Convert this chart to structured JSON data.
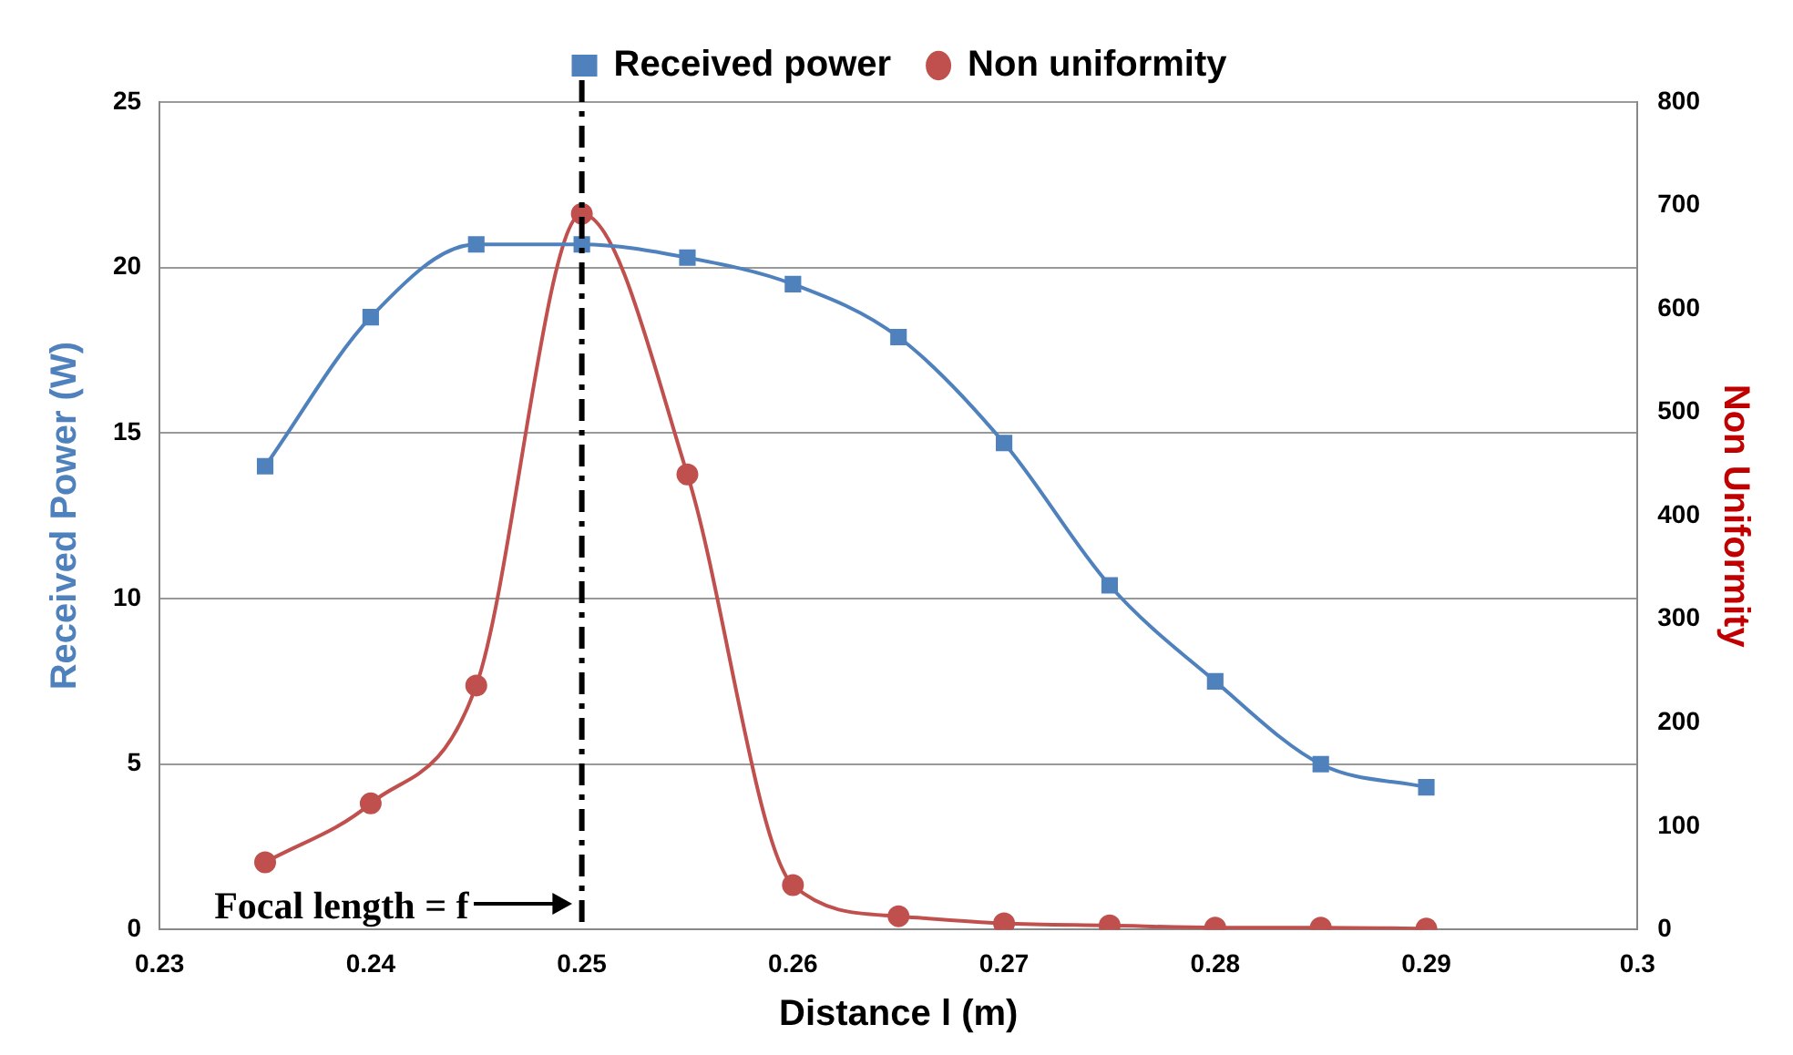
{
  "chart_data": {
    "type": "line",
    "xlabel": "Distance l (m)",
    "ylabel": "Received Power (W)",
    "y2label": "Non Uniformity",
    "x": [
      0.235,
      0.24,
      0.245,
      0.25,
      0.255,
      0.26,
      0.265,
      0.27,
      0.275,
      0.28,
      0.285,
      0.29
    ],
    "series": [
      {
        "name": "Received power",
        "color": "#4f81bd",
        "marker": "square",
        "values": [
          14.0,
          18.5,
          20.7,
          20.7,
          20.3,
          19.5,
          17.9,
          14.7,
          10.4,
          7.5,
          5.0,
          4.3
        ]
      },
      {
        "name": "Non uniformity",
        "color": "#c0504d",
        "marker": "circle",
        "axis": "y2",
        "values": [
          65,
          122,
          236,
          692,
          440,
          43,
          13,
          6,
          4,
          2,
          2,
          1
        ]
      }
    ],
    "xlim": [
      0.23,
      0.3
    ],
    "xticks": [
      0.23,
      0.24,
      0.25,
      0.26,
      0.27,
      0.28,
      0.29,
      0.3
    ],
    "ylim": [
      0,
      25
    ],
    "yticks": [
      0,
      5,
      10,
      15,
      20,
      25
    ],
    "y2lim": [
      0,
      800
    ],
    "y2ticks": [
      0,
      100,
      200,
      300,
      400,
      500,
      600,
      700,
      800
    ],
    "ref_lines": [
      {
        "axis": "x",
        "value": 0.25,
        "label": "Focal length = f",
        "color": "#000000",
        "line_style": "dashed"
      }
    ],
    "grid": "y",
    "legend": "top",
    "line_style": "solid"
  }
}
